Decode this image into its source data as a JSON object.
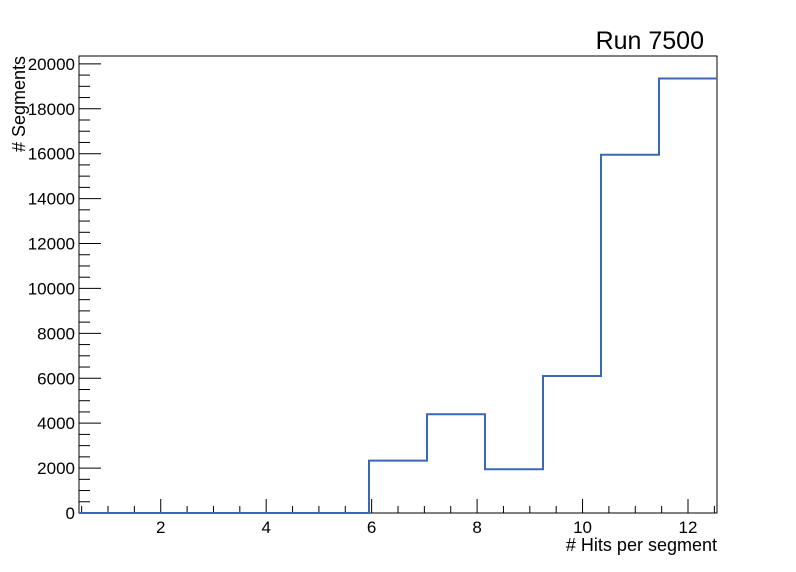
{
  "window": {
    "background_color": "#ffffff"
  },
  "chart_data": {
    "type": "bar",
    "style": "step-histogram-outline",
    "title": "Run 7500",
    "xlabel": "# Hits per segment",
    "ylabel": "# Segments",
    "xlim": [
      0.45,
      12.55
    ],
    "ylim": [
      0,
      20350
    ],
    "bin_edges": [
      0.45,
      1.55,
      2.65,
      3.75,
      4.85,
      5.95,
      7.05,
      8.15,
      9.25,
      10.35,
      11.45,
      12.55
    ],
    "values": [
      0,
      0,
      0,
      0,
      0,
      2330,
      4400,
      1950,
      6100,
      15950,
      19350
    ],
    "x_major_ticks": [
      2,
      4,
      6,
      8,
      10,
      12
    ],
    "x_minor_step": 0.5,
    "y_major_ticks": [
      0,
      2000,
      4000,
      6000,
      8000,
      10000,
      12000,
      14000,
      16000,
      18000,
      20000
    ],
    "y_minor_step": 500,
    "line_color": "#3b68b5",
    "axis_color": "#000000",
    "grid": false,
    "legend": false
  }
}
